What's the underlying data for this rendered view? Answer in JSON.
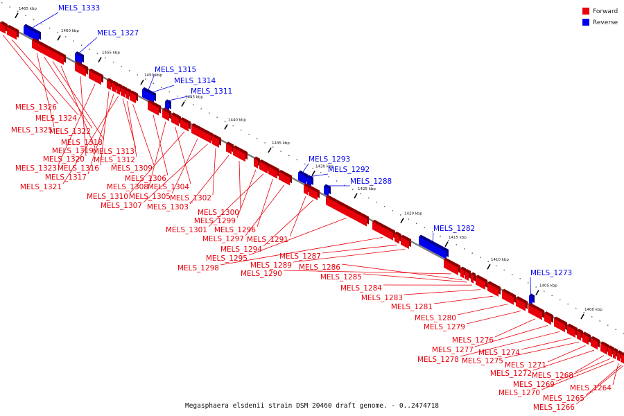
{
  "caption": "Megasphaera elsdenii strain DSM 20460 draft genome. - 0..2474718",
  "legend": [
    {
      "key": "forward",
      "label": "Forward",
      "color": "#e8000b"
    },
    {
      "key": "reverse",
      "label": "Reverse",
      "color": "#0000f0"
    }
  ],
  "colors": {
    "forward": "#e8000b",
    "forward_dark": "#8c0000",
    "reverse": "#0000f0",
    "reverse_dark": "#00008a",
    "axis": "#7a7a7a",
    "tick": "#000000"
  },
  "axis": {
    "unit": "kbp",
    "kbp_labels": [
      "1465 kbp",
      "1460 kbp",
      "1455 kbp",
      "1450 kbp",
      "1445 kbp",
      "1440 kbp",
      "1435 kbp",
      "1430 kbp",
      "1425 kbp",
      "1420 kbp",
      "1415 kbp",
      "1410 kbp",
      "1405 kbp",
      "1400 kbp"
    ]
  },
  "reverse_genes": [
    "MELS_1333",
    "MELS_1327",
    "MELS_1315",
    "MELS_1314",
    "MELS_1311",
    "MELS_1293",
    "MELS_1292",
    "MELS_1288",
    "MELS_1282",
    "MELS_1273"
  ],
  "forward_genes": [
    "MELS_1326",
    "MELS_1324",
    "MELS_1325",
    "MELS_1322",
    "MELS_1318",
    "MELS_1319",
    "MELS_1320",
    "MELS_1323",
    "MELS_1316",
    "MELS_1317",
    "MELS_1321",
    "MELS_1313",
    "MELS_1312",
    "MELS_1309",
    "MELS_1306",
    "MELS_1308",
    "MELS_1304",
    "MELS_1310",
    "MELS_1305",
    "MELS_1307",
    "MELS_1302",
    "MELS_1303",
    "MELS_1300",
    "MELS_1299",
    "MELS_1301",
    "MELS_1296",
    "MELS_1297",
    "MELS_1291",
    "MELS_1294",
    "MELS_1295",
    "MELS_1298",
    "MELS_1287",
    "MELS_1289",
    "MELS_1290",
    "MELS_1286",
    "MELS_1285",
    "MELS_1284",
    "MELS_1283",
    "MELS_1281",
    "MELS_1280",
    "MELS_1279",
    "MELS_1276",
    "MELS_1277",
    "MELS_1278",
    "MELS_1274",
    "MELS_1275",
    "MELS_1271",
    "MELS_1272",
    "MELS_1268",
    "MELS_1269",
    "MELS_1270",
    "MELS_1264",
    "MELS_1265",
    "MELS_1266"
  ]
}
